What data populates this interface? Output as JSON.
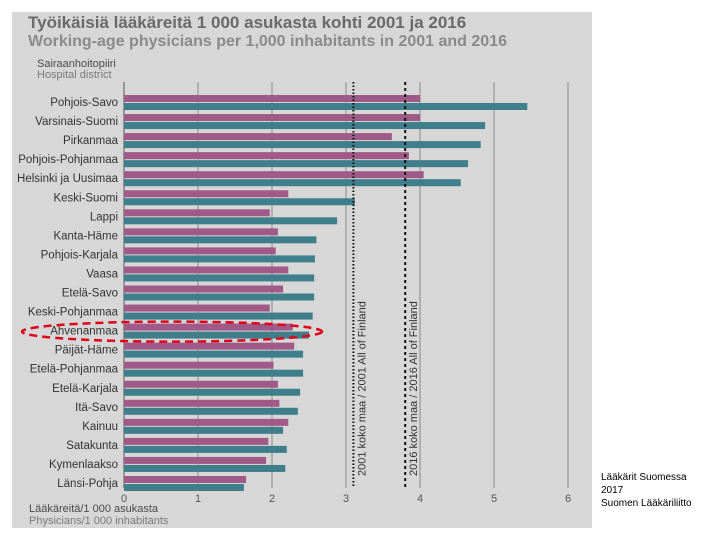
{
  "chart_data": {
    "type": "bar",
    "orientation": "horizontal",
    "title": "Työikäisiä lääkäreitä 1 000 asukasta kohti 2001 ja 2016",
    "subtitle": "Working-age physicians per 1,000 inhabitants in 2001 and 2016",
    "category_header": [
      "Sairaanhoitopiiri",
      "Hospital district"
    ],
    "xlabel": [
      "Lääkäreitä/1 000 asukasta",
      "Physicians/1 000 inhabitants"
    ],
    "xlim": [
      0,
      6
    ],
    "xticks": [
      "0",
      "1",
      "2",
      "3",
      "4",
      "5",
      "6"
    ],
    "grid": true,
    "categories": [
      "Pohjois-Savo",
      "Varsinais-Suomi",
      "Pirkanmaa",
      "Pohjois-Pohjanmaa",
      "Helsinki ja Uusimaa",
      "Keski-Suomi",
      "Lappi",
      "Kanta-Häme",
      "Pohjois-Karjala",
      "Vaasa",
      "Etelä-Savo",
      "Keski-Pohjanmaa",
      "Ahvenanmaa",
      "Päijät-Häme",
      "Etelä-Pohjanmaa",
      "Etelä-Karjala",
      "Itä-Savo",
      "Kainuu",
      "Satakunta",
      "Kymenlaakso",
      "Länsi-Pohja"
    ],
    "series": [
      {
        "values": [
          4.0,
          4.0,
          3.62,
          3.85,
          4.05,
          2.22,
          1.97,
          2.08,
          2.05,
          2.22,
          2.15,
          1.97,
          2.28,
          2.3,
          2.02,
          2.08,
          2.1,
          2.22,
          1.95,
          1.92,
          1.65
        ]
      },
      {
        "values": [
          5.45,
          4.88,
          4.82,
          4.65,
          4.55,
          3.12,
          2.88,
          2.6,
          2.58,
          2.57,
          2.57,
          2.55,
          2.5,
          2.42,
          2.42,
          2.38,
          2.35,
          2.15,
          2.2,
          2.18,
          1.62
        ]
      }
    ],
    "reference_lines": [
      {
        "label": "2001 koko maa / 2001 All of Finland",
        "value": 3.1
      },
      {
        "label": "2016 koko maa / 2016 All of Finland",
        "value": 3.8
      }
    ],
    "highlighted_category": "Ahvenanmaa",
    "colors": {
      "series_2001": "#a05a88",
      "series_2016": "#3f7f8c",
      "highlight": "#e0001a",
      "background": "#d7d7d7"
    }
  },
  "footer": {
    "line1": "Lääkärit Suomessa",
    "line2": "2017",
    "line3": "Suomen Lääkäriliitto"
  }
}
